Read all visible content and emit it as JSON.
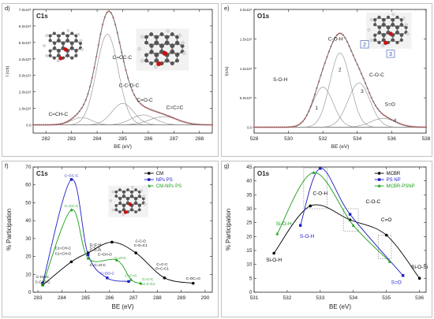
{
  "colors": {
    "raw": "#c05050",
    "fit": "#6a6a6a",
    "component": "#8a8a8a",
    "baseline": "#555555",
    "cm": "#000000",
    "nps": "#1c1cc8",
    "cmnps": "#18a018",
    "molecule_carbon": "#555555",
    "molecule_oxygen": "#cc1010",
    "molecule_hydrogen": "#dddddd",
    "panel_bg": "#f2f2f2"
  },
  "chart_data": [
    {
      "panel": "d)",
      "type": "line",
      "title": "C1s",
      "xlabel": "BE (eV)",
      "ylabel": "I (c/s)",
      "xlim": [
        281.5,
        288.5
      ],
      "xticks": [
        282,
        283,
        284,
        285,
        286,
        287,
        288
      ],
      "ylim": [
        -50000,
        700000
      ],
      "yticks": [
        0,
        100000,
        200000,
        300000,
        400000,
        500000,
        600000,
        700000
      ],
      "yticklabels": [
        "0.0",
        "1.0x10⁵",
        "2.0x10⁵",
        "3.0x10⁵",
        "4.0x10⁵",
        "5.0x10⁵",
        "6.0x10⁵",
        "7.0x10⁵"
      ],
      "components": [
        {
          "label": "C=CH-C",
          "center": 283.4,
          "height": 45000,
          "width": 0.9
        },
        {
          "label": "C=CC-C",
          "center": 284.4,
          "height": 550000,
          "width": 1.0
        },
        {
          "label": "C-C-O-C",
          "center": 285.0,
          "height": 130000,
          "width": 1.0
        },
        {
          "label": "C=O-C",
          "center": 285.8,
          "height": 60000,
          "width": 1.1
        },
        {
          "label": "C=C=C",
          "center": 286.6,
          "height": 50000,
          "width": 1.3
        }
      ],
      "fit_extra": {
        "center": 284.5,
        "height": 85000,
        "width": 1.6
      },
      "annotations": [
        "C=CH-C",
        "C=CC-C",
        "C-C-O-C",
        "C=O-C",
        "C=C=C"
      ],
      "grid": false,
      "legend": "none"
    },
    {
      "panel": "e)",
      "type": "line",
      "title": "O1s",
      "xlabel": "BE (eV)",
      "ylabel": "I(c/s)",
      "xlim": [
        528,
        538
      ],
      "xticks": [
        528,
        530,
        532,
        534,
        536,
        538
      ],
      "ylim": [
        -100000,
        2000000
      ],
      "yticks": [
        0,
        500000,
        1000000,
        1500000,
        2000000
      ],
      "yticklabels": [
        "0.0",
        "5.0x10⁵",
        "1.0x10⁶",
        "1.5x10⁶",
        "2.0x10⁶"
      ],
      "components": [
        {
          "label": "S-O-H",
          "num": "1",
          "center": 532.0,
          "height": 680000,
          "width": 1.4
        },
        {
          "label": "C-O-H",
          "num": "2",
          "center": 533.0,
          "height": 1260000,
          "width": 1.4
        },
        {
          "label": "C-O-C",
          "num": "3",
          "center": 534.1,
          "height": 750000,
          "width": 1.5
        },
        {
          "label": "S=O",
          "num": "4",
          "center": 535.5,
          "height": 150000,
          "width": 1.7
        }
      ],
      "annotations": [
        "S-O-H",
        "C-O-H",
        "C-O-C",
        "S=O",
        "1",
        "2",
        "3",
        "4"
      ],
      "inset_labels": [
        "2",
        "3"
      ],
      "grid": false,
      "legend": "none"
    },
    {
      "panel": "f)",
      "type": "line",
      "title": "C1s",
      "xlabel": "BE (eV)",
      "ylabel": "% Participation",
      "xlim": [
        282.8,
        290.3
      ],
      "xticks": [
        283,
        284,
        285,
        286,
        287,
        288,
        289,
        290
      ],
      "ylim": [
        0,
        70
      ],
      "yticks": [
        0,
        10,
        20,
        30,
        40,
        50,
        60,
        70
      ],
      "legend": "top-right",
      "grid": false,
      "series": [
        {
          "name": "CM",
          "color": "#000000",
          "points": [
            [
              283.2,
              4
            ],
            [
              284.4,
              17
            ],
            [
              285.1,
              22
            ],
            [
              286.1,
              28
            ],
            [
              287.1,
              22
            ],
            [
              288.3,
              8
            ],
            [
              289.5,
              5
            ]
          ]
        },
        {
          "name": "NPs PS",
          "color": "#1c1cc8",
          "points": [
            [
              283.2,
              5
            ],
            [
              284.4,
              63
            ],
            [
              285.1,
              21
            ],
            [
              285.9,
              8
            ],
            [
              286.8,
              6
            ]
          ]
        },
        {
          "name": "CM-NPs PS",
          "color": "#18a018",
          "points": [
            [
              283.2,
              4
            ],
            [
              284.4,
              46
            ],
            [
              285.1,
              19
            ],
            [
              286.3,
              18
            ],
            [
              286.9,
              7
            ],
            [
              287.3,
              5
            ]
          ]
        }
      ],
      "annotations": [
        {
          "text": "C=CC-C",
          "color": "#1c1cc8",
          "x": 284.4,
          "y": 64.5
        },
        {
          "text": "C=CC-C",
          "color": "#18a018",
          "x": 284.4,
          "y": 47.5
        },
        {
          "text": "C1=CH-C",
          "color": "#000000",
          "x": 284.05,
          "y": 24
        },
        {
          "text": "C1=CH-O",
          "color": "#000000",
          "x": 284.05,
          "y": 21
        },
        {
          "text": "C-CH-C",
          "color": "#000000",
          "x": 283.2,
          "y": 8
        },
        {
          "text": "C-CH2-C",
          "color": "#000000",
          "x": 283.2,
          "y": 5
        },
        {
          "text": "C-C-C",
          "color": "#000000",
          "x": 285.4,
          "y": 24.5
        },
        {
          "text": "C=C-H",
          "color": "#000000",
          "x": 285.4,
          "y": 26
        },
        {
          "text": "C=C-O",
          "color": "#000000",
          "x": 285.4,
          "y": 23
        },
        {
          "text": "C=CH-O",
          "color": "#000000",
          "x": 285.8,
          "y": 20.5
        },
        {
          "text": "C=C=O-C",
          "color": "#000000",
          "x": 285.5,
          "y": 14.5
        },
        {
          "text": "C=O-C",
          "color": "#18a018",
          "x": 286.45,
          "y": 18.5
        },
        {
          "text": "C=OO-C",
          "color": "#1c1cc8",
          "x": 285.9,
          "y": 10
        },
        {
          "text": "C=C=C",
          "color": "#18a018",
          "x": 286.9,
          "y": 8.5
        },
        {
          "text": "C-C-O",
          "color": "#000000",
          "x": 287.3,
          "y": 28
        },
        {
          "text": "C-O=C1",
          "color": "#000000",
          "x": 287.3,
          "y": 25.5
        },
        {
          "text": "C=C-C",
          "color": "#18a018",
          "x": 287.6,
          "y": 6.5
        },
        {
          "text": "C1-C-C1",
          "color": "#18a018",
          "x": 287.6,
          "y": 4
        },
        {
          "text": "C=C-C",
          "color": "#000000",
          "x": 288.2,
          "y": 15
        },
        {
          "text": "O=C-C1",
          "color": "#000000",
          "x": 288.2,
          "y": 12.5
        },
        {
          "text": "C-OC=O",
          "color": "#000000",
          "x": 289.5,
          "y": 7
        }
      ]
    },
    {
      "panel": "g)",
      "type": "line",
      "title": "O1s",
      "xlabel": "BE (eV)",
      "ylabel": "% Participation",
      "xlim": [
        531,
        536.2
      ],
      "xticks": [
        531,
        532,
        533,
        534,
        535,
        536
      ],
      "ylim": [
        0,
        45
      ],
      "yticks": [
        0,
        5,
        10,
        15,
        20,
        25,
        30,
        35,
        40,
        45
      ],
      "legend": "top-right",
      "grid": false,
      "series": [
        {
          "name": "MCBR",
          "color": "#000000",
          "points": [
            [
              531.6,
              14
            ],
            [
              532.7,
              31
            ],
            [
              533.9,
              26
            ],
            [
              535.0,
              20.5
            ],
            [
              536.0,
              5
            ]
          ]
        },
        {
          "name": "PS NP",
          "color": "#1c1cc8",
          "points": [
            [
              532.4,
              24
            ],
            [
              533.0,
              44.5
            ],
            [
              533.9,
              28
            ],
            [
              535.5,
              6
            ]
          ]
        },
        {
          "name": "MCBR-PSNP",
          "color": "#18a018",
          "points": [
            [
              531.7,
              21
            ],
            [
              532.8,
              43
            ],
            [
              534.0,
              24
            ],
            [
              535.1,
              11
            ]
          ]
        }
      ],
      "annotations": [
        {
          "text": "Si-O-H",
          "color": "#18a018",
          "x": 531.9,
          "y": 24
        },
        {
          "text": "S-O-H",
          "color": "#1c1cc8",
          "x": 532.6,
          "y": 19.5
        },
        {
          "text": "Si-O-H",
          "color": "#000000",
          "x": 531.6,
          "y": 11
        },
        {
          "text": "C-O-H",
          "color": "#000000",
          "x": 533.0,
          "y": 35
        },
        {
          "text": "C-O-C",
          "color": "#000000",
          "x": 534.6,
          "y": 32
        },
        {
          "text": "C=O",
          "color": "#000000",
          "x": 535.0,
          "y": 25.5
        },
        {
          "text": "S=O",
          "color": "#1c1cc8",
          "x": 535.3,
          "y": 3
        },
        {
          "text": "Si-O-Si",
          "color": "#000000",
          "x": 536.0,
          "y": 8.5
        }
      ]
    }
  ]
}
